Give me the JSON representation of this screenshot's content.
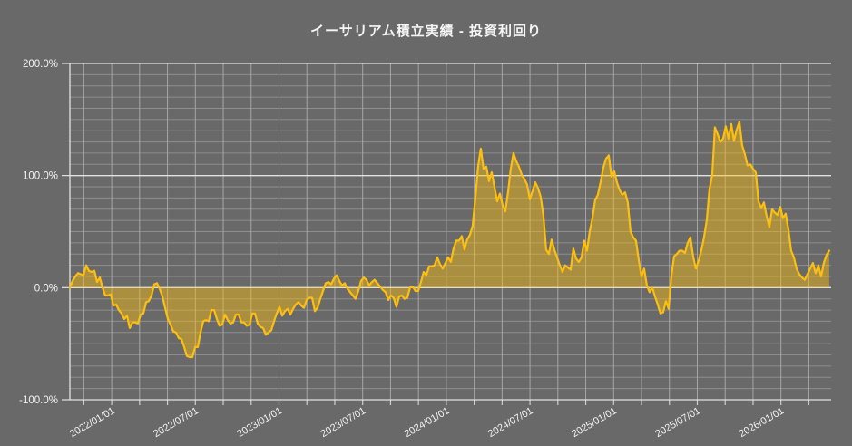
{
  "title": "イーサリアム積立実績  -  投資利回り",
  "colors": {
    "background": "#696969",
    "line": "#FCBF10",
    "fill": "#FCBF10",
    "fill_opacity": 0.45,
    "grid_minor_h": "#8e8e8e",
    "grid_vertical": "#a6a6a6",
    "grid_major_h": "#e2e2e2",
    "axis_tick": "#d0d0d0",
    "text": "#f2f2f2"
  },
  "chart_data": {
    "type": "area",
    "title": "イーサリアム積立実績  -  投資利回り",
    "xlabel": "",
    "ylabel": "",
    "legend": "none",
    "grid": "on",
    "baseline": 0,
    "ylim": [
      -100,
      200
    ],
    "y_unit": "%",
    "y_minor_step": 10,
    "y_ticks": [
      {
        "label": "200.0%",
        "value": 200
      },
      {
        "label": "100.0%",
        "value": 100
      },
      {
        "label": "0.0%",
        "value": 0
      },
      {
        "label": "-100.0%",
        "value": -100
      }
    ],
    "x_start_date": "2021/10/01",
    "x_end_date": "2026/04/15",
    "xlim_months": [
      0,
      54.6
    ],
    "x_minor_step_months": 2,
    "x_minor_start_month": 1,
    "x_ticks": [
      {
        "label": "2022/01/01",
        "month": 3
      },
      {
        "label": "2022/07/01",
        "month": 9
      },
      {
        "label": "2023/01/01",
        "month": 15
      },
      {
        "label": "2023/07/01",
        "month": 21
      },
      {
        "label": "2024/01/01",
        "month": 27
      },
      {
        "label": "2024/07/01",
        "month": 33
      },
      {
        "label": "2025/01/01",
        "month": 39
      },
      {
        "label": "2025/07/01",
        "month": 45
      },
      {
        "label": "2026/01/01",
        "month": 51
      }
    ],
    "series": [
      {
        "name": "投資利回り",
        "unit": "%",
        "sampling": {
          "start_month": 0,
          "step_months": 0.1952,
          "count": 280
        },
        "values": [
          0,
          6,
          10,
          13,
          12,
          11,
          20,
          15,
          14,
          15,
          5,
          9,
          0,
          -7,
          -7,
          -6,
          -16,
          -15,
          -20,
          -23,
          -28,
          -25,
          -36,
          -31,
          -31,
          -32,
          -24,
          -23,
          -13,
          -12,
          -7,
          3,
          4,
          -1,
          -8,
          -18,
          -28,
          -33,
          -39,
          -40,
          -45,
          -46,
          -53,
          -61,
          -62,
          -62,
          -53,
          -53,
          -40,
          -30,
          -29,
          -30,
          -20,
          -20,
          -28,
          -34,
          -33,
          -24,
          -29,
          -32,
          -31,
          -24,
          -24,
          -31,
          -31,
          -34,
          -33,
          -23,
          -23,
          -32,
          -35,
          -36,
          -42,
          -40,
          -38,
          -30,
          -23,
          -17,
          -25,
          -21,
          -19,
          -24,
          -19,
          -15,
          -13,
          -16,
          -18,
          -11,
          -9,
          -9,
          -21,
          -18,
          -10,
          -3,
          4,
          5,
          3,
          8,
          11,
          6,
          2,
          4,
          -1,
          -4,
          -7,
          -10,
          -3,
          6,
          9,
          7,
          2,
          5,
          7,
          4,
          1,
          -2,
          -4,
          -11,
          -7,
          -9,
          -17,
          -8,
          -7,
          -10,
          -9,
          0,
          1,
          -3,
          -3,
          5,
          14,
          11,
          19,
          19,
          20,
          27,
          21,
          17,
          22,
          27,
          23,
          35,
          42,
          42,
          46,
          34,
          43,
          47,
          55,
          80,
          108,
          124,
          106,
          108,
          95,
          103,
          90,
          77,
          84,
          74,
          68,
          85,
          106,
          120,
          113,
          108,
          101,
          97,
          92,
          79,
          86,
          94,
          89,
          81,
          64,
          34,
          30,
          43,
          34,
          27,
          20,
          14,
          20,
          18,
          16,
          35,
          26,
          23,
          27,
          42,
          33,
          50,
          62,
          78,
          83,
          94,
          107,
          115,
          118,
          99,
          104,
          94,
          87,
          83,
          85,
          76,
          50,
          45,
          42,
          25,
          10,
          17,
          2,
          -4,
          0,
          -8,
          -15,
          -23,
          -22,
          -12,
          -19,
          10,
          28,
          30,
          33,
          33,
          31,
          40,
          45,
          28,
          17,
          24,
          33,
          45,
          60,
          88,
          100,
          143,
          137,
          130,
          133,
          144,
          133,
          146,
          131,
          141,
          148,
          127,
          119,
          109,
          110,
          106,
          103,
          77,
          71,
          76,
          64,
          54,
          70,
          67,
          65,
          72,
          62,
          66,
          52,
          33,
          27,
          17,
          12,
          9,
          7,
          12,
          17,
          22,
          13,
          20,
          10,
          22,
          29,
          33
        ]
      }
    ]
  }
}
